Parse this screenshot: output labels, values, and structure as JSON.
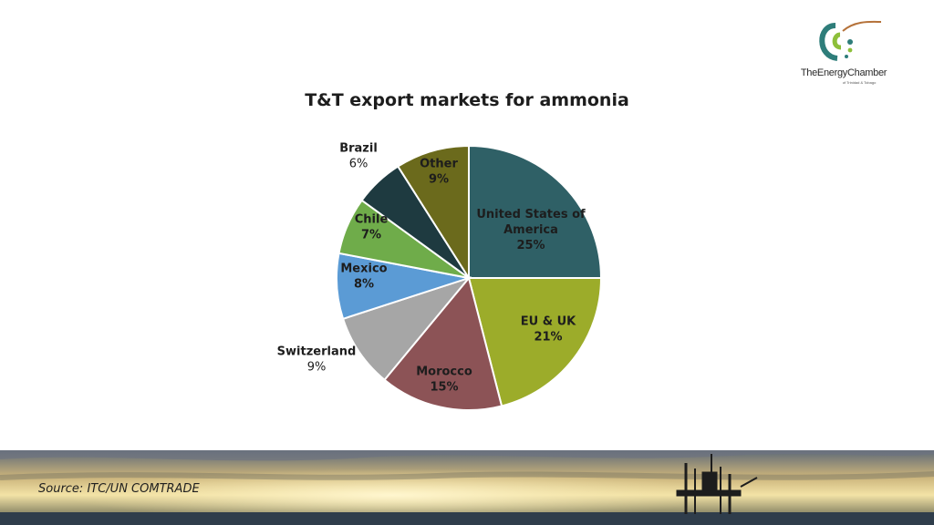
{
  "logo": {
    "brand_text": "TheEnergyChamber",
    "sub_text": "of Trinidad & Tobago"
  },
  "source_text": "Source: ITC/UN COMTRADE",
  "chart_data": {
    "type": "pie",
    "title": "T&T export markets for ammonia",
    "slices": [
      {
        "label": [
          "United States of",
          "America"
        ],
        "value_label": "25%",
        "value": 25,
        "color": "#2f6066"
      },
      {
        "label": [
          "EU & UK"
        ],
        "value_label": "21%",
        "value": 21,
        "color": "#9cac2a"
      },
      {
        "label": [
          "Morocco"
        ],
        "value_label": "15%",
        "value": 15,
        "color": "#8c5356"
      },
      {
        "label": [
          "Switzerland"
        ],
        "value_label": "9%",
        "value": 9,
        "color": "#a6a6a6"
      },
      {
        "label": [
          "Mexico"
        ],
        "value_label": "8%",
        "value": 8,
        "color": "#5b9bd5"
      },
      {
        "label": [
          "Chile"
        ],
        "value_label": "7%",
        "value": 7,
        "color": "#6fac4a"
      },
      {
        "label": [
          "Brazil"
        ],
        "value_label": "6%",
        "value": 6,
        "color": "#1e3a40"
      },
      {
        "label": [
          "Other"
        ],
        "value_label": "9%",
        "value": 9,
        "color": "#6b6a1c"
      }
    ],
    "legend": "none",
    "start_angle": "12 o'clock",
    "direction": "clockwise"
  }
}
